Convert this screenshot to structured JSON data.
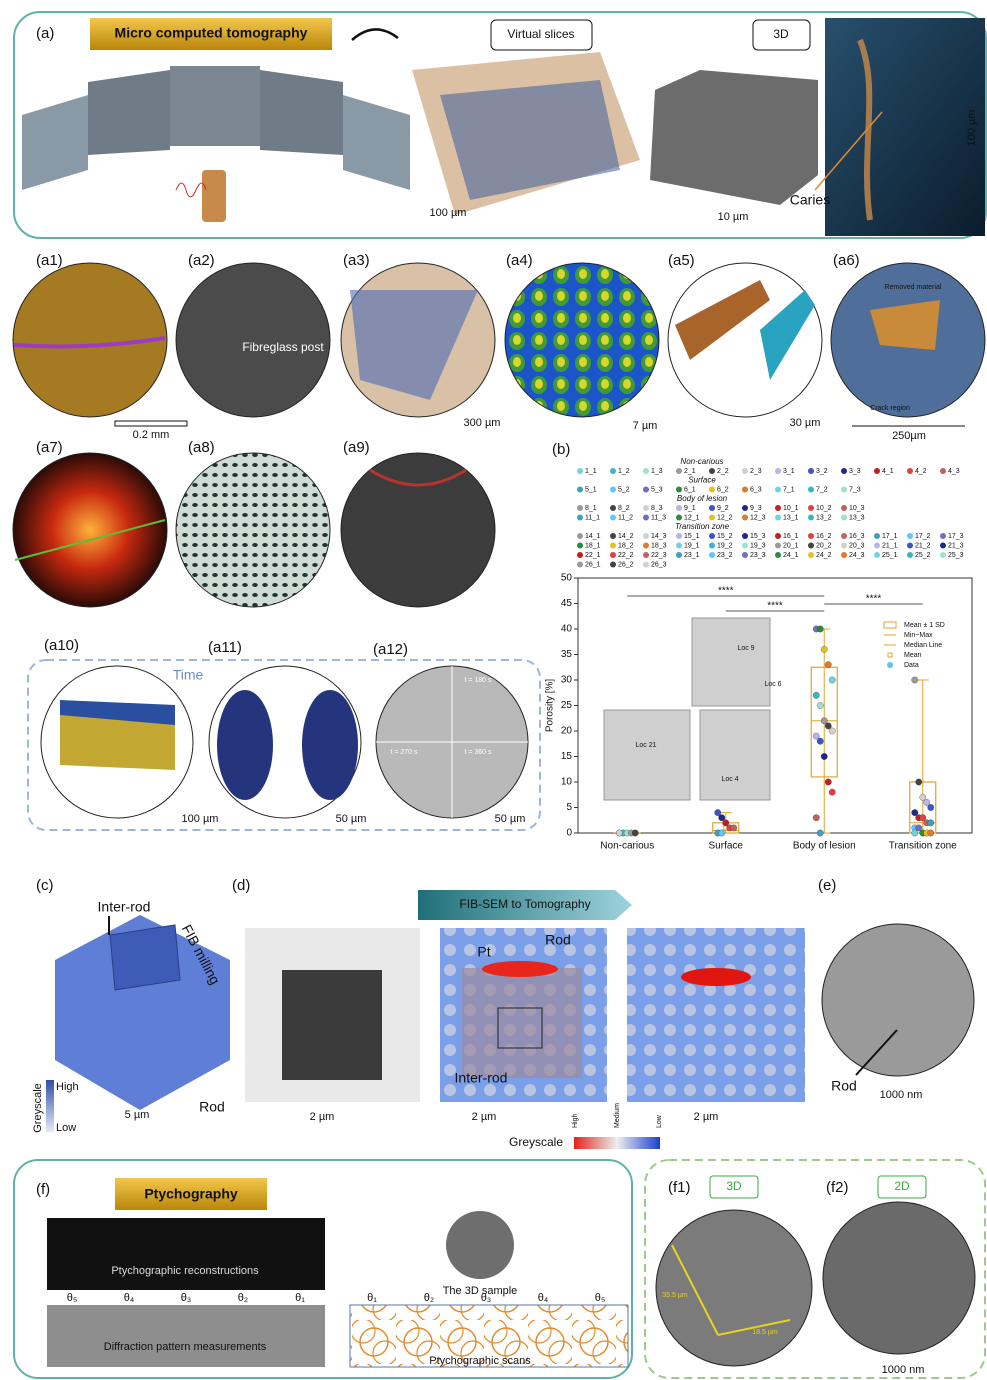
{
  "a": {
    "label": "(a)",
    "title": "Micro computed tomography",
    "slices": "Virtual slices",
    "view3d": "3D",
    "scale_slices": "100 µm",
    "scale_cube": "10 µm",
    "caries": "Caries",
    "scale_caries": "100 µm"
  },
  "a1": {
    "label": "(a1)",
    "scale": "0.2 mm"
  },
  "a2": {
    "label": "(a2)",
    "text": "Fibreglass post"
  },
  "a3": {
    "label": "(a3)",
    "scale": "300 µm"
  },
  "a4": {
    "label": "(a4)",
    "scale": "7 µm"
  },
  "a5": {
    "label": "(a5)",
    "scale": "30 µm"
  },
  "a6": {
    "label": "(a6)",
    "removed": "Removed material",
    "crack": "Crack region",
    "scale": "250µm"
  },
  "a7": {
    "label": "(a7)"
  },
  "a8": {
    "label": "(a8)"
  },
  "a9": {
    "label": "(a9)"
  },
  "a10": {
    "label": "(a10)",
    "time": "Time",
    "scale": "100 µm"
  },
  "a11": {
    "label": "(a11)",
    "scale": "50 µm"
  },
  "a12": {
    "label": "(a12)",
    "scale": "50 µm",
    "frames": [
      "t = 180 s",
      "t = 270 s",
      "t = 360 s"
    ]
  },
  "b": {
    "label": "(b)",
    "legend_groups": [
      {
        "title": "Non-carious",
        "rows": [
          [
            "1_1",
            "1_2",
            "1_3",
            "2_1",
            "2_2",
            "2_3",
            "3_1",
            "3_2",
            "3_3",
            "4_1",
            "4_2",
            "4_3"
          ]
        ]
      },
      {
        "title": "Surface",
        "rows": [
          [
            "5_1",
            "5_2",
            "5_3",
            "6_1",
            "6_2",
            "6_3",
            "7_1",
            "7_2",
            "7_3"
          ]
        ]
      },
      {
        "title": "Body of lesion",
        "rows": [
          [
            "8_1",
            "8_2",
            "8_3",
            "9_1",
            "9_2",
            "9_3",
            "10_1",
            "10_2",
            "10_3"
          ],
          [
            "11_1",
            "11_2",
            "11_3",
            "12_1",
            "12_2",
            "12_3",
            "13_1",
            "13_2",
            "13_3"
          ]
        ]
      },
      {
        "title": "Transition zone",
        "rows": [
          [
            "14_1",
            "14_2",
            "14_3",
            "15_1",
            "15_2",
            "15_3",
            "16_1",
            "16_2",
            "16_3",
            "17_1",
            "17_2",
            "17_3"
          ],
          [
            "18_1",
            "18_2",
            "18_3",
            "19_1",
            "19_2",
            "19_3",
            "20_1",
            "20_2",
            "20_3",
            "21_1",
            "21_2",
            "21_3"
          ],
          [
            "22_1",
            "22_2",
            "22_3",
            "23_1",
            "23_2",
            "23_3",
            "24_1",
            "24_2",
            "24_3",
            "25_1",
            "25_2",
            "25_3"
          ],
          [
            "26_1",
            "26_2",
            "26_3"
          ]
        ]
      }
    ]
  },
  "chart_data": {
    "type": "box",
    "y_label": "Porosity [%]",
    "categories": [
      "Non-carious",
      "Surface",
      "Body of lesion",
      "Transition zone"
    ],
    "ylim": [
      0,
      50
    ],
    "yticks": [
      0,
      5,
      10,
      15,
      20,
      25,
      30,
      35,
      40,
      45,
      50
    ],
    "color": "#e0a52a",
    "q1": [
      0,
      0,
      11,
      0
    ],
    "q3": [
      0,
      2,
      32.5,
      10
    ],
    "median": [
      0,
      0.5,
      22,
      2
    ],
    "mean": [
      0,
      1,
      22,
      3
    ],
    "min": [
      0,
      0,
      0,
      0
    ],
    "max": [
      0,
      4,
      40,
      30
    ],
    "points": [
      [
        0,
        0,
        0,
        0,
        0,
        0
      ],
      [
        4,
        3,
        2,
        1,
        1,
        0,
        0
      ],
      [
        40,
        40,
        36,
        33,
        30,
        27,
        25,
        22,
        21,
        20,
        19,
        18,
        15,
        10,
        8,
        3,
        0
      ],
      [
        30,
        10,
        7,
        6,
        5,
        4,
        3,
        3,
        2,
        2,
        1,
        1,
        0,
        0,
        0,
        0
      ]
    ],
    "significance": [
      "****",
      "****",
      "****"
    ],
    "legend": [
      "Mean ± 1 SD",
      "Min~Max",
      "Median Line",
      "Mean",
      "Data"
    ],
    "insets": [
      "Loc 9",
      "Loc 6",
      "Loc 21",
      "Loc 4"
    ]
  },
  "c": {
    "label": "(c)",
    "inter_rod": "Inter-rod",
    "fib": "FIB milling",
    "high": "High",
    "low": "Low",
    "greyscale": "Greyscale",
    "scale": "5 µm",
    "rod": "Rod"
  },
  "d": {
    "label": "(d)",
    "banner": "FIB-SEM to Tomography",
    "scales": [
      "2 µm",
      "2 µm",
      "2 µm"
    ],
    "pt": "Pt",
    "rod": "Rod",
    "inter_rod": "Inter-rod",
    "greyscale": "Greyscale",
    "high": "High",
    "medium": "Medium",
    "low": "Low"
  },
  "e": {
    "label": "(e)",
    "rod": "Rod",
    "scale": "1000 nm"
  },
  "f": {
    "label": "(f)",
    "title": "Ptychography",
    "reconstructions": "Ptychographic reconstructions",
    "diffraction": "Diffraction pattern measurements",
    "angles_top": [
      "θ₅",
      "θ₄",
      "θ₃",
      "θ₂",
      "θ₁"
    ],
    "sample": "The 3D sample",
    "scans": "Ptychographic scans",
    "angles_scan": [
      "θ₁",
      "θ₂",
      "θ₃",
      "θ₄",
      "θ₅"
    ]
  },
  "f1": {
    "label": "(f1)",
    "tag": "3D",
    "len1": "35.5 µm",
    "len2": "18.5 µm"
  },
  "f2": {
    "label": "(f2)",
    "tag": "2D",
    "scale": "1000 nm"
  }
}
